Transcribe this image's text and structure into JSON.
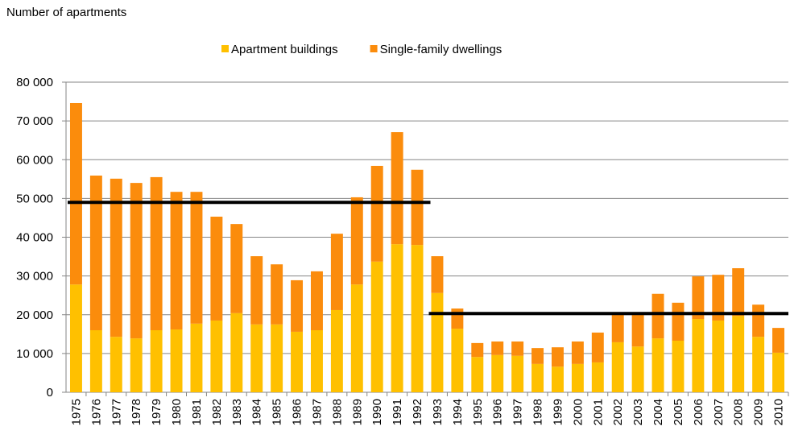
{
  "chart_data": {
    "type": "stacked_bar",
    "title": "Number of apartments",
    "categories": [
      "1975",
      "1976",
      "1977",
      "1978",
      "1979",
      "1980",
      "1981",
      "1982",
      "1983",
      "1984",
      "1985",
      "1986",
      "1987",
      "1988",
      "1989",
      "1990",
      "1991",
      "1992",
      "1993",
      "1994",
      "1995",
      "1996",
      "1997",
      "1998",
      "1999",
      "2000",
      "2001",
      "2002",
      "2003",
      "2004",
      "2005",
      "2006",
      "2007",
      "2008",
      "2009",
      "2010"
    ],
    "series": [
      {
        "name": "Apartment buildings",
        "color": "#ffc000",
        "values": [
          27800,
          16000,
          14300,
          13900,
          16000,
          16200,
          17700,
          18500,
          20400,
          17500,
          17500,
          15600,
          16000,
          21200,
          27800,
          33700,
          38200,
          38000,
          25600,
          16400,
          9100,
          9600,
          9400,
          7300,
          6600,
          7300,
          7700,
          12900,
          11800,
          13900,
          13300,
          18900,
          18500,
          19700,
          14300,
          10200
        ]
      },
      {
        "name": "Single-family dwellings",
        "color": "#fb8c0c",
        "values": [
          46800,
          39900,
          40800,
          40100,
          39500,
          35500,
          34000,
          26800,
          23000,
          17600,
          15500,
          13300,
          15200,
          19700,
          22500,
          24700,
          28900,
          19400,
          9500,
          5200,
          3600,
          3500,
          3700,
          4100,
          5000,
          5800,
          7700,
          7500,
          8600,
          11500,
          9800,
          11000,
          11800,
          12300,
          8300,
          6400
        ]
      }
    ],
    "reference_lines": [
      {
        "value": 49000,
        "start": "1975",
        "end": "1992",
        "color": "#000000"
      },
      {
        "value": 20300,
        "start": "1993",
        "end": "2010",
        "color": "#000000"
      }
    ],
    "ylim": [
      0,
      80000
    ],
    "yticks": [
      0,
      {
        "value": 10000,
        "label": "10 000"
      },
      {
        "value": 20000,
        "label": "20 000"
      },
      {
        "value": 30000,
        "label": "30 000"
      },
      {
        "value": 40000,
        "label": "40 000"
      },
      {
        "value": 50000,
        "label": "50 000"
      },
      {
        "value": 60000,
        "label": "60 000"
      },
      {
        "value": 70000,
        "label": "70 000"
      },
      {
        "value": 80000,
        "label": "80 000"
      }
    ],
    "grid": true,
    "legend": "top"
  }
}
